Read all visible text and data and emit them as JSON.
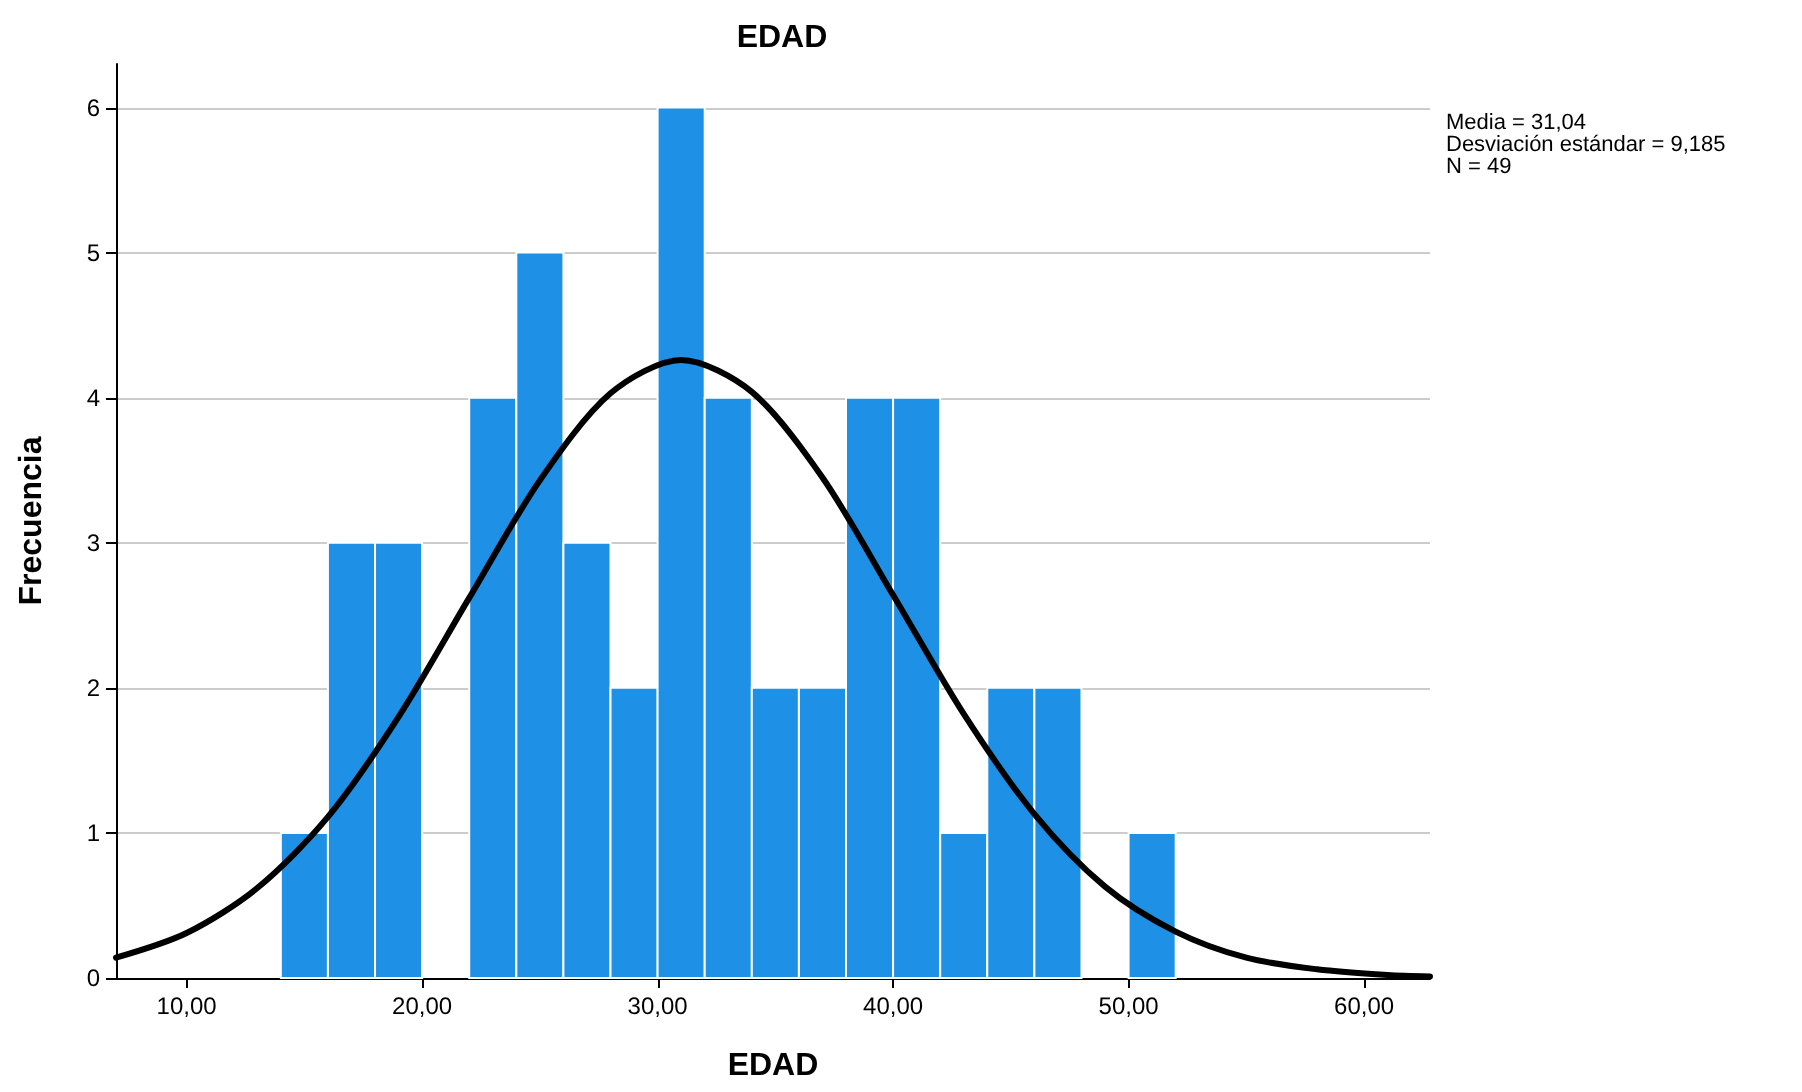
{
  "chart_data": {
    "type": "histogram",
    "title": "EDAD",
    "xlabel": "EDAD",
    "ylabel": "Frecuencia",
    "bins": [
      14,
      16,
      18,
      20,
      22,
      24,
      26,
      28,
      30,
      32,
      34,
      36,
      38,
      40,
      42,
      44,
      46,
      48,
      50,
      52
    ],
    "values": [
      1,
      3,
      3,
      0,
      4,
      5,
      3,
      2,
      6,
      4,
      2,
      2,
      4,
      4,
      1,
      2,
      2,
      0,
      1
    ],
    "color": "#1e90e6",
    "series": [
      {
        "type": "line",
        "color": "#000000",
        "x": [
          7,
          10,
          13,
          16,
          19,
          22,
          25,
          28,
          31,
          34,
          37,
          40,
          43,
          46,
          49,
          52,
          55,
          58,
          61,
          62.8
        ],
        "values": [
          0.14,
          0.31,
          0.62,
          1.11,
          1.8,
          2.62,
          3.43,
          4.03,
          4.26,
          4.04,
          3.45,
          2.64,
          1.82,
          1.13,
          0.63,
          0.32,
          0.14,
          0.06,
          0.02,
          0.01
        ]
      }
    ],
    "xlim": [
      7,
      62.8
    ],
    "xticks": [
      {
        "value": 10,
        "label": "10,00"
      },
      {
        "value": 20,
        "label": "20,00"
      },
      {
        "value": 30,
        "label": "30,00"
      },
      {
        "value": 40,
        "label": "40,00"
      },
      {
        "value": 50,
        "label": "50,00"
      },
      {
        "value": 60,
        "label": "60,00"
      }
    ],
    "ylim": [
      0,
      6.3
    ],
    "yticks": [
      0,
      1,
      2,
      3,
      4,
      5,
      6
    ],
    "grid": "y",
    "marker": "none",
    "line_style": "solid",
    "annotations": [
      "Media = 31,04",
      "Desviación estándar = 9,185",
      "N = 49"
    ]
  }
}
